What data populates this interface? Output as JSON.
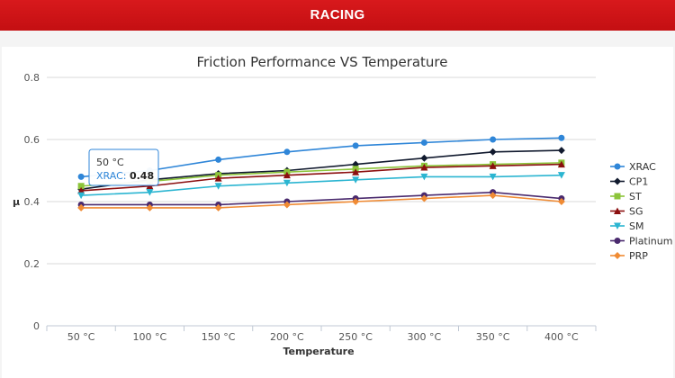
{
  "header": {
    "title": "RACING"
  },
  "colors": {
    "header_bg": "#c9121a"
  },
  "chart_data": {
    "type": "line",
    "title": "Friction Performance VS Temperature",
    "xlabel": "Temperature",
    "ylabel": "μ",
    "ylim": [
      0,
      0.8
    ],
    "yticks": [
      "0",
      "0.2",
      "0.4",
      "0.6",
      "0.8"
    ],
    "categories": [
      "50 °C",
      "100 °C",
      "150 °C",
      "200 °C",
      "250 °C",
      "300 °C",
      "350 °C",
      "400 °C"
    ],
    "grid": true,
    "legend_position": "right",
    "series": [
      {
        "name": "XRAC",
        "color": "#2f86d8",
        "marker": "circle",
        "values": [
          0.48,
          0.5,
          0.535,
          0.56,
          0.58,
          0.59,
          0.6,
          0.605
        ]
      },
      {
        "name": "CP1",
        "color": "#111a2e",
        "marker": "diamond",
        "values": [
          0.44,
          0.47,
          0.49,
          0.5,
          0.52,
          0.54,
          0.56,
          0.565
        ]
      },
      {
        "name": "ST",
        "color": "#8cc43a",
        "marker": "square",
        "values": [
          0.45,
          0.465,
          0.485,
          0.495,
          0.505,
          0.515,
          0.52,
          0.525
        ]
      },
      {
        "name": "SG",
        "color": "#8b0f0f",
        "marker": "triangle-up",
        "values": [
          0.435,
          0.45,
          0.475,
          0.485,
          0.495,
          0.51,
          0.515,
          0.52
        ]
      },
      {
        "name": "SM",
        "color": "#2bb5d1",
        "marker": "triangle-down",
        "values": [
          0.42,
          0.43,
          0.45,
          0.46,
          0.47,
          0.48,
          0.48,
          0.485
        ]
      },
      {
        "name": "Platinum",
        "color": "#4a2a6e",
        "marker": "circle",
        "values": [
          0.39,
          0.39,
          0.39,
          0.4,
          0.41,
          0.42,
          0.43,
          0.41
        ]
      },
      {
        "name": "PRP",
        "color": "#f08b34",
        "marker": "diamond",
        "values": [
          0.38,
          0.38,
          0.38,
          0.39,
          0.4,
          0.41,
          0.42,
          0.4
        ]
      }
    ],
    "tooltip": {
      "category": "50 °C",
      "series": "XRAC",
      "value": "0.48"
    }
  }
}
